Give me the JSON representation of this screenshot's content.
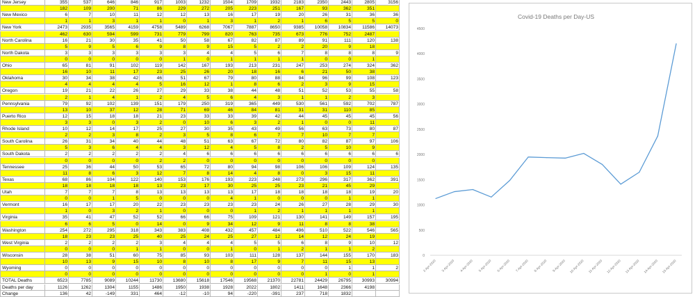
{
  "spreadsheet": {
    "rows": [
      {
        "state": "New Jersey",
        "style": "white",
        "values": [
          "355",
          "537",
          "646",
          "846",
          "917",
          "1003",
          "1232",
          "1504",
          "1709",
          "1932",
          "2183",
          "2350",
          "2443",
          "2805",
          "3156"
        ]
      },
      {
        "state": "",
        "style": "yellow",
        "values": [
          "182",
          "109",
          "200",
          "71",
          "86",
          "229",
          "272",
          "205",
          "223",
          "251",
          "167",
          "93",
          "362",
          "351",
          ""
        ]
      },
      {
        "state": "New Mexico",
        "style": "white",
        "values": [
          "6",
          "7",
          "10",
          "11",
          "12",
          "12",
          "13",
          "16",
          "17",
          "19",
          "20",
          "26",
          "31",
          "36",
          "36"
        ]
      },
      {
        "state": "",
        "style": "yellow",
        "values": [
          "1",
          "1",
          "3",
          "1",
          "1",
          "0",
          "1",
          "3",
          "1",
          "2",
          "1",
          "6",
          "5",
          "5",
          "0"
        ]
      },
      {
        "state": "New York",
        "style": "white",
        "values": [
          "2473",
          "2935",
          "3565",
          "4159",
          "4758",
          "5489",
          "6268",
          "7067",
          "7887",
          "8650",
          "9385",
          "10058",
          "10834",
          "11586",
          "14073"
        ]
      },
      {
        "state": "",
        "style": "yellow",
        "values": [
          "462",
          "630",
          "594",
          "599",
          "731",
          "779",
          "799",
          "820",
          "763",
          "735",
          "673",
          "776",
          "752",
          "2487",
          ""
        ]
      },
      {
        "state": "North Carolina",
        "style": "white",
        "values": [
          "16",
          "21",
          "30",
          "35",
          "41",
          "50",
          "58",
          "67",
          "82",
          "87",
          "89",
          "91",
          "111",
          "120",
          "138"
        ]
      },
      {
        "state": "",
        "style": "yellow",
        "values": [
          "5",
          "9",
          "5",
          "6",
          "9",
          "8",
          "9",
          "15",
          "5",
          "2",
          "2",
          "20",
          "9",
          "18",
          ""
        ]
      },
      {
        "state": "North Dakota",
        "style": "white",
        "values": [
          "3",
          "3",
          "3",
          "3",
          "3",
          "3",
          "4",
          "4",
          "5",
          "6",
          "7",
          "8",
          "8",
          "8",
          "9"
        ]
      },
      {
        "state": "",
        "style": "yellow",
        "values": [
          "0",
          "0",
          "0",
          "0",
          "0",
          "1",
          "0",
          "1",
          "1",
          "1",
          "1",
          "0",
          "0",
          "1",
          ""
        ]
      },
      {
        "state": "Ohio",
        "style": "white",
        "values": [
          "65",
          "81",
          "91",
          "102",
          "119",
          "142",
          "167",
          "193",
          "213",
          "231",
          "247",
          "253",
          "274",
          "324",
          "362"
        ]
      },
      {
        "state": "",
        "style": "yellow",
        "values": [
          "16",
          "10",
          "11",
          "17",
          "23",
          "25",
          "26",
          "20",
          "18",
          "16",
          "6",
          "21",
          "50",
          "38",
          ""
        ]
      },
      {
        "state": "Oklahoma",
        "style": "white",
        "values": [
          "30",
          "34",
          "38",
          "42",
          "46",
          "51",
          "67",
          "79",
          "80",
          "88",
          "94",
          "96",
          "99",
          "108",
          "123"
        ]
      },
      {
        "state": "",
        "style": "yellow",
        "values": [
          "4",
          "4",
          "4",
          "4",
          "5",
          "16",
          "12",
          "1",
          "8",
          "6",
          "2",
          "3",
          "9",
          "15",
          ""
        ]
      },
      {
        "state": "Oregon",
        "style": "white",
        "values": [
          "19",
          "21",
          "22",
          "26",
          "27",
          "29",
          "33",
          "38",
          "44",
          "48",
          "51",
          "52",
          "53",
          "55",
          "58"
        ]
      },
      {
        "state": "",
        "style": "yellow",
        "values": [
          "2",
          "1",
          "4",
          "1",
          "2",
          "4",
          "5",
          "6",
          "4",
          "3",
          "1",
          "1",
          "2",
          "3",
          ""
        ]
      },
      {
        "state": "Pennsylvania",
        "style": "white",
        "values": [
          "79",
          "92",
          "102",
          "139",
          "151",
          "179",
          "250",
          "319",
          "365",
          "449",
          "530",
          "561",
          "592",
          "702",
          "787"
        ]
      },
      {
        "state": "",
        "style": "yellow",
        "values": [
          "13",
          "10",
          "37",
          "12",
          "28",
          "71",
          "69",
          "46",
          "84",
          "81",
          "31",
          "31",
          "110",
          "85",
          ""
        ]
      },
      {
        "state": "Puerto Rico",
        "style": "white",
        "values": [
          "12",
          "15",
          "18",
          "18",
          "21",
          "23",
          "33",
          "33",
          "39",
          "42",
          "44",
          "45",
          "45",
          "45",
          "56"
        ]
      },
      {
        "state": "",
        "style": "yellow",
        "values": [
          "3",
          "3",
          "0",
          "3",
          "2",
          "0",
          "10",
          "6",
          "3",
          "2",
          "1",
          "0",
          "0",
          "11",
          ""
        ]
      },
      {
        "state": "Rhode Island",
        "style": "white",
        "values": [
          "10",
          "12",
          "14",
          "17",
          "25",
          "27",
          "30",
          "35",
          "43",
          "49",
          "56",
          "63",
          "73",
          "80",
          "87"
        ]
      },
      {
        "state": "",
        "style": "yellow",
        "values": [
          "2",
          "2",
          "3",
          "8",
          "2",
          "3",
          "5",
          "8",
          "6",
          "7",
          "7",
          "10",
          "7",
          "7",
          ""
        ]
      },
      {
        "state": "South Carolina",
        "style": "white",
        "values": [
          "26",
          "31",
          "34",
          "40",
          "44",
          "48",
          "51",
          "63",
          "67",
          "72",
          "80",
          "82",
          "87",
          "97",
          "106"
        ]
      },
      {
        "state": "",
        "style": "yellow",
        "values": [
          "5",
          "3",
          "6",
          "4",
          "4",
          "3",
          "12",
          "4",
          "5",
          "8",
          "2",
          "5",
          "10",
          "9",
          ""
        ]
      },
      {
        "state": "South Dakota",
        "style": "white",
        "values": [
          "2",
          "2",
          "2",
          "2",
          "2",
          "4",
          "6",
          "6",
          "6",
          "6",
          "6",
          "6",
          "6",
          "6",
          "6"
        ]
      },
      {
        "state": "",
        "style": "yellow",
        "values": [
          "0",
          "0",
          "0",
          "0",
          "2",
          "2",
          "0",
          "0",
          "0",
          "0",
          "0",
          "0",
          "0",
          "0",
          ""
        ]
      },
      {
        "state": "Tennessee",
        "style": "white",
        "values": [
          "25",
          "36",
          "44",
          "50",
          "53",
          "65",
          "72",
          "80",
          "94",
          "98",
          "106",
          "106",
          "109",
          "124",
          "135"
        ]
      },
      {
        "state": "",
        "style": "yellow",
        "values": [
          "11",
          "8",
          "6",
          "3",
          "12",
          "7",
          "8",
          "14",
          "4",
          "8",
          "0",
          "3",
          "15",
          "11",
          ""
        ]
      },
      {
        "state": "Texas",
        "style": "white",
        "values": [
          "68",
          "86",
          "104",
          "122",
          "140",
          "153",
          "176",
          "193",
          "223",
          "248",
          "273",
          "296",
          "317",
          "362",
          "391"
        ]
      },
      {
        "state": "",
        "style": "yellow",
        "values": [
          "18",
          "18",
          "18",
          "18",
          "13",
          "23",
          "17",
          "30",
          "25",
          "25",
          "23",
          "21",
          "45",
          "29",
          ""
        ]
      },
      {
        "state": "Utah",
        "style": "white",
        "values": [
          "7",
          "7",
          "7",
          "8",
          "13",
          "13",
          "13",
          "13",
          "17",
          "18",
          "18",
          "18",
          "18",
          "19",
          "20"
        ]
      },
      {
        "state": "",
        "style": "yellow",
        "values": [
          "0",
          "0",
          "1",
          "5",
          "0",
          "0",
          "0",
          "4",
          "1",
          "0",
          "0",
          "0",
          "1",
          "1",
          ""
        ]
      },
      {
        "state": "Vermont",
        "style": "white",
        "values": [
          "16",
          "17",
          "17",
          "20",
          "22",
          "23",
          "23",
          "23",
          "23",
          "24",
          "26",
          "27",
          "28",
          "29",
          "30"
        ]
      },
      {
        "state": "",
        "style": "yellow",
        "values": [
          "1",
          "0",
          "3",
          "2",
          "1",
          "0",
          "0",
          "0",
          "1",
          "2",
          "1",
          "1",
          "1",
          "1",
          ""
        ]
      },
      {
        "state": "Virginia",
        "style": "white",
        "values": [
          "35",
          "41",
          "47",
          "52",
          "52",
          "66",
          "66",
          "75",
          "109",
          "121",
          "130",
          "141",
          "149",
          "157",
          "195"
        ]
      },
      {
        "state": "",
        "style": "yellow",
        "values": [
          "6",
          "6",
          "5",
          "0",
          "14",
          "0",
          "9",
          "34",
          "12",
          "9",
          "11",
          "8",
          "8",
          "38",
          ""
        ]
      },
      {
        "state": "Washington",
        "style": "white",
        "values": [
          "254",
          "272",
          "295",
          "318",
          "343",
          "383",
          "408",
          "432",
          "457",
          "484",
          "496",
          "510",
          "522",
          "546",
          "565"
        ]
      },
      {
        "state": "",
        "style": "yellow",
        "values": [
          "18",
          "23",
          "23",
          "25",
          "40",
          "25",
          "24",
          "25",
          "27",
          "12",
          "14",
          "12",
          "24",
          "19",
          ""
        ]
      },
      {
        "state": "West Virginia",
        "style": "white",
        "values": [
          "2",
          "2",
          "2",
          "2",
          "3",
          "4",
          "4",
          "4",
          "5",
          "5",
          "6",
          "8",
          "9",
          "10",
          "12"
        ]
      },
      {
        "state": "",
        "style": "yellow",
        "values": [
          "0",
          "0",
          "0",
          "1",
          "1",
          "0",
          "0",
          "1",
          "0",
          "1",
          "2",
          "1",
          "1",
          "2",
          ""
        ]
      },
      {
        "state": "Wisconsin",
        "style": "white",
        "values": [
          "28",
          "38",
          "51",
          "60",
          "75",
          "85",
          "93",
          "103",
          "111",
          "128",
          "137",
          "144",
          "155",
          "170",
          "183"
        ]
      },
      {
        "state": "",
        "style": "yellow",
        "values": [
          "10",
          "13",
          "9",
          "15",
          "10",
          "8",
          "10",
          "8",
          "17",
          "9",
          "7",
          "11",
          "15",
          "13",
          ""
        ]
      },
      {
        "state": "Wyoming",
        "style": "white",
        "values": [
          "0",
          "0",
          "0",
          "0",
          "0",
          "0",
          "0",
          "0",
          "0",
          "0",
          "0",
          "0",
          "1",
          "1",
          "2"
        ]
      },
      {
        "state": "",
        "style": "yellow",
        "values": [
          "0",
          "0",
          "0",
          "0",
          "0",
          "0",
          "0",
          "0",
          "0",
          "0",
          "0",
          "1",
          "0",
          "1",
          ""
        ]
      },
      {
        "state": "TOTAL Deaths",
        "style": "white",
        "values": [
          "6523",
          "7785",
          "9089",
          "10244",
          "11730",
          "13680",
          "15618",
          "17546",
          "19568",
          "21370",
          "22781",
          "24429",
          "26795",
          "30993",
          "30994"
        ]
      },
      {
        "state": "Deaths per day",
        "style": "white",
        "values": [
          "1126",
          "1262",
          "1304",
          "1155",
          "1486",
          "1950",
          "1938",
          "1928",
          "2022",
          "1802",
          "1411",
          "1648",
          "2366",
          "4198",
          ""
        ]
      },
      {
        "state": "Change",
        "style": "white",
        "values": [
          "136",
          "42",
          "-149",
          "331",
          "464",
          "-12",
          "-10",
          "94",
          "-220",
          "-391",
          "237",
          "718",
          "1832",
          "",
          ""
        ]
      }
    ]
  },
  "chart_data": {
    "type": "line",
    "title": "Covid-19 Deaths per Day-US",
    "x": [
      "2-Apr-2020",
      "3-Apr-2020",
      "4-Apr-2020",
      "5-Apr-2020",
      "6-Apr-2020",
      "7-Apr-2020",
      "8-Apr-2020",
      "9-Apr-2020",
      "10-Apr-2020",
      "11-Apr-2020",
      "12-Apr-2020",
      "13-Apr-2020",
      "14-Apr-2020",
      "15-Apr-2020"
    ],
    "values": [
      1126,
      1262,
      1304,
      1155,
      1486,
      1950,
      1938,
      1928,
      2022,
      1802,
      1411,
      1648,
      2366,
      4198
    ],
    "ylim": [
      0,
      4500
    ],
    "yticks": [
      "0",
      "500",
      "1000",
      "1500",
      "2000",
      "2500",
      "3000",
      "3500",
      "4000",
      "4500"
    ],
    "grid": false,
    "line_color": "#5b9bd5"
  }
}
